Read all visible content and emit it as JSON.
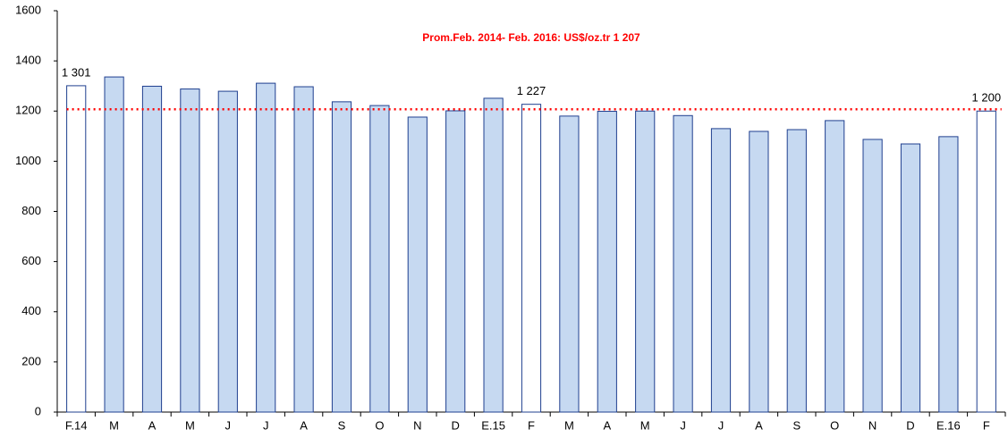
{
  "chart_data": {
    "type": "bar",
    "categories": [
      "F.14",
      "M",
      "A",
      "M",
      "J",
      "J",
      "A",
      "S",
      "O",
      "N",
      "D",
      "E.15",
      "F",
      "M",
      "A",
      "M",
      "J",
      "J",
      "A",
      "S",
      "O",
      "N",
      "D",
      "E.16",
      "F"
    ],
    "values": [
      1301,
      1336,
      1299,
      1288,
      1279,
      1311,
      1297,
      1237,
      1222,
      1176,
      1201,
      1251,
      1227,
      1180,
      1199,
      1200,
      1182,
      1130,
      1119,
      1126,
      1162,
      1087,
      1069,
      1098,
      1200
    ],
    "value_labels": [
      "1 301",
      null,
      null,
      null,
      null,
      null,
      null,
      null,
      null,
      null,
      null,
      null,
      "1 227",
      null,
      null,
      null,
      null,
      null,
      null,
      null,
      null,
      null,
      null,
      null,
      "1 200"
    ],
    "colors": [
      "#ffffff",
      "#c6d9f1",
      "#c6d9f1",
      "#c6d9f1",
      "#c6d9f1",
      "#c6d9f1",
      "#c6d9f1",
      "#c6d9f1",
      "#c6d9f1",
      "#c6d9f1",
      "#c6d9f1",
      "#c6d9f1",
      "#ffffff",
      "#c6d9f1",
      "#c6d9f1",
      "#c6d9f1",
      "#c6d9f1",
      "#c6d9f1",
      "#c6d9f1",
      "#c6d9f1",
      "#c6d9f1",
      "#c6d9f1",
      "#c6d9f1",
      "#c6d9f1",
      "#ffffff"
    ],
    "border_color": "#1f3f8f",
    "reference_line": {
      "value": 1207,
      "color": "#ff0000",
      "label": "Prom.Feb. 2014- Feb. 2016: US$/oz.tr 1 207"
    },
    "ylim": [
      0,
      1600
    ],
    "yticks": [
      0,
      200,
      400,
      600,
      800,
      1000,
      1200,
      1400,
      1600
    ],
    "grid": false
  }
}
